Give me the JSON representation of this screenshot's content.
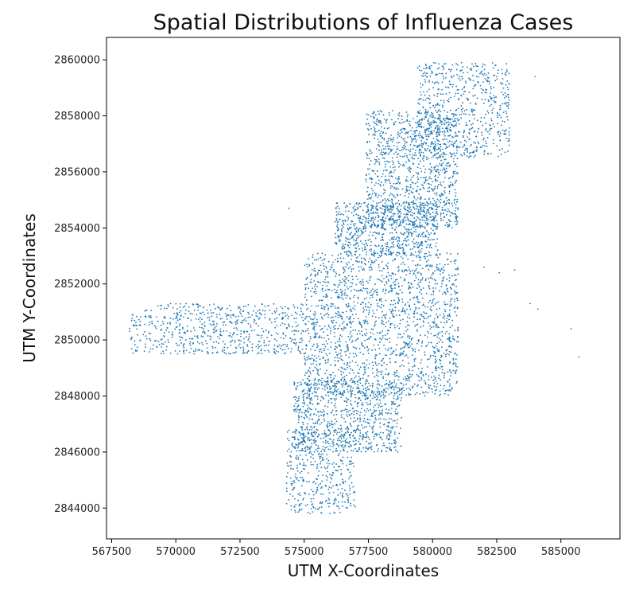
{
  "chart_data": {
    "type": "scatter",
    "title": "Spatial Distributions of Influenza Cases",
    "xlabel": "UTM X-Coordinates",
    "ylabel": "UTM Y-Coordinates",
    "xlim": [
      567300,
      587300
    ],
    "ylim": [
      2842900,
      2860800
    ],
    "xticks": [
      567500,
      570000,
      572500,
      575000,
      577500,
      580000,
      582500,
      585000
    ],
    "xtick_labels": [
      "567500",
      "570000",
      "572500",
      "575000",
      "577500",
      "580000",
      "582500",
      "585000"
    ],
    "yticks": [
      2844000,
      2846000,
      2848000,
      2850000,
      2852000,
      2854000,
      2856000,
      2858000,
      2860000
    ],
    "ytick_labels": [
      "2844000",
      "2846000",
      "2848000",
      "2850000",
      "2852000",
      "2854000",
      "2856000",
      "2858000",
      "2860000"
    ],
    "grid": false,
    "marker_color": "#1f77b4",
    "series": [
      {
        "cluster_summary": true,
        "clusters": [
          {
            "x_range": [
              568200,
              575000
            ],
            "y_range": [
              2849500,
              2851300
            ],
            "n": 650
          },
          {
            "x_range": [
              574300,
              577000
            ],
            "y_range": [
              2843800,
              2846800
            ],
            "n": 420
          },
          {
            "x_range": [
              574600,
              578800
            ],
            "y_range": [
              2846000,
              2848600
            ],
            "n": 820
          },
          {
            "x_range": [
              575000,
              581000
            ],
            "y_range": [
              2848000,
              2853100
            ],
            "n": 1800
          },
          {
            "x_range": [
              576200,
              580200
            ],
            "y_range": [
              2853000,
              2854900
            ],
            "n": 700
          },
          {
            "x_range": [
              577400,
              581000
            ],
            "y_range": [
              2854000,
              2858200
            ],
            "n": 1100
          },
          {
            "x_range": [
              579400,
              583000
            ],
            "y_range": [
              2856500,
              2859900
            ],
            "n": 650
          }
        ],
        "outliers": [
          {
            "x": 582000,
            "y": 2852600
          },
          {
            "x": 582600,
            "y": 2852400
          },
          {
            "x": 583200,
            "y": 2852500
          },
          {
            "x": 583800,
            "y": 2851300
          },
          {
            "x": 584100,
            "y": 2851100
          },
          {
            "x": 585400,
            "y": 2850400
          },
          {
            "x": 585700,
            "y": 2849400
          },
          {
            "x": 584000,
            "y": 2859400
          },
          {
            "x": 574400,
            "y": 2854700
          }
        ]
      }
    ]
  }
}
